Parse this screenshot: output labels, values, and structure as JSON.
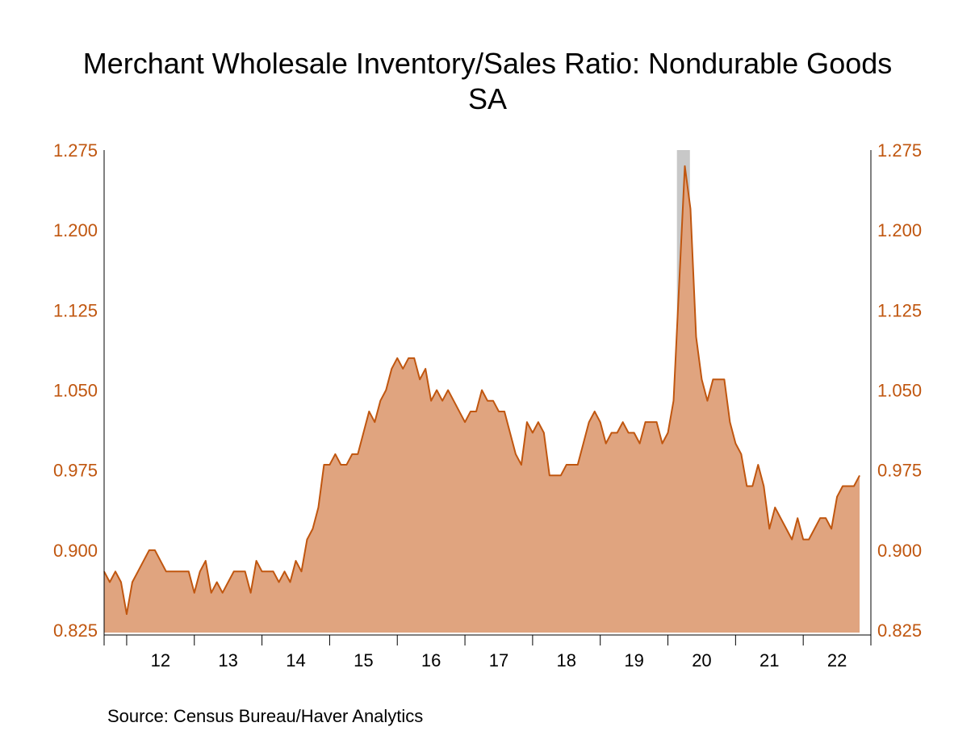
{
  "chart_data": {
    "type": "area",
    "title": "Merchant Wholesale Inventory/Sales Ratio: Nondurable Goods",
    "subtitle": "SA",
    "source": "Source:  Census Bureau/Haver Analytics",
    "colors": {
      "line": "#C0560F",
      "fill": "#E0A47F",
      "recession": "#C8C8C8",
      "axis_text": "#C0560F"
    },
    "ylim": [
      0.825,
      1.275
    ],
    "yticks": [
      "0.825",
      "0.900",
      "0.975",
      "1.050",
      "1.125",
      "1.200",
      "1.275"
    ],
    "x_start": "2011-09",
    "x_end": "2022-12",
    "x_tick_labels": [
      "12",
      "13",
      "14",
      "15",
      "16",
      "17",
      "18",
      "19",
      "20",
      "21",
      "22"
    ],
    "recession": {
      "start": "2020-02",
      "end": "2020-04"
    },
    "series": [
      {
        "values": [
          0.88,
          0.87,
          0.88,
          0.87,
          0.84,
          0.87,
          0.88,
          0.89,
          0.9,
          0.9,
          0.89,
          0.88,
          0.88,
          0.88,
          0.88,
          0.88,
          0.86,
          0.88,
          0.89,
          0.86,
          0.87,
          0.86,
          0.87,
          0.88,
          0.88,
          0.88,
          0.86,
          0.89,
          0.88,
          0.88,
          0.88,
          0.87,
          0.88,
          0.87,
          0.89,
          0.88,
          0.91,
          0.92,
          0.94,
          0.98,
          0.98,
          0.99,
          0.98,
          0.98,
          0.99,
          0.99,
          1.01,
          1.03,
          1.02,
          1.04,
          1.05,
          1.07,
          1.08,
          1.07,
          1.08,
          1.08,
          1.06,
          1.07,
          1.04,
          1.05,
          1.04,
          1.05,
          1.04,
          1.03,
          1.02,
          1.03,
          1.03,
          1.05,
          1.04,
          1.04,
          1.03,
          1.03,
          1.01,
          0.99,
          0.98,
          1.02,
          1.01,
          1.02,
          1.01,
          0.97,
          0.97,
          0.97,
          0.98,
          0.98,
          0.98,
          1.0,
          1.02,
          1.03,
          1.02,
          1.0,
          1.01,
          1.01,
          1.02,
          1.01,
          1.01,
          1.0,
          1.02,
          1.02,
          1.02,
          1.0,
          1.01,
          1.04,
          1.15,
          1.26,
          1.22,
          1.1,
          1.06,
          1.04,
          1.06,
          1.06,
          1.06,
          1.02,
          1.0,
          0.99,
          0.96,
          0.96,
          0.98,
          0.96,
          0.92,
          0.94,
          0.93,
          0.92,
          0.91,
          0.93,
          0.91,
          0.91,
          0.92,
          0.93,
          0.93,
          0.92,
          0.95,
          0.96,
          0.96,
          0.96,
          0.97
        ]
      }
    ]
  }
}
